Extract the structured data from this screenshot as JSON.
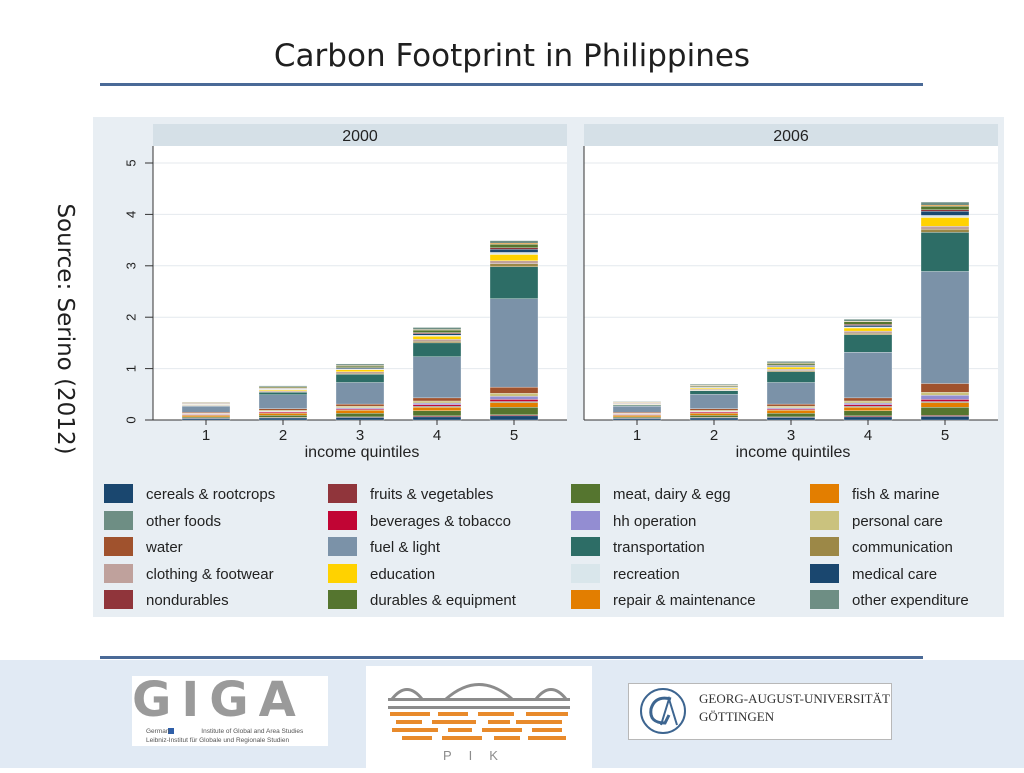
{
  "slide": {
    "title": "Carbon Footprint in Philippines",
    "source": "Source: Serino (2012)"
  },
  "logos": {
    "giga": {
      "name": "GIGA",
      "line1": "German",
      "line1b": "Institute of Global and Area Studies",
      "line2": "Leibniz-Institut für Globale und Regionale Studien"
    },
    "pik": {
      "name": "PIK"
    },
    "goettingen": {
      "line1": "GEORG-AUGUST-UNIVERSITÄT",
      "line2": "GÖTTINGEN"
    }
  },
  "colors": {
    "title_rule": "#4a6a97",
    "plot_bg": "#e8eef3",
    "panel_header_bg": "#d5e0e7",
    "footer_band": "#e1eaf4"
  },
  "chart_data": {
    "type": "bar",
    "stacked": true,
    "panels": [
      "2000",
      "2006"
    ],
    "categories": [
      "1",
      "2",
      "3",
      "4",
      "5"
    ],
    "xlabel": "income quintiles",
    "ylabel": "",
    "ylim": [
      0,
      5
    ],
    "yticks": [
      "0",
      "1",
      "2",
      "3",
      "4",
      "5"
    ],
    "grid": true,
    "legend_position": "bottom",
    "series": [
      {
        "name": "cereals & rootcrops",
        "color": "#1a476f",
        "values_2000": [
          0.03,
          0.04,
          0.05,
          0.06,
          0.08
        ],
        "values_2006": [
          0.03,
          0.04,
          0.05,
          0.06,
          0.07
        ]
      },
      {
        "name": "fruits & vegetables",
        "color": "#90353b",
        "values_2000": [
          0.01,
          0.01,
          0.01,
          0.02,
          0.02
        ],
        "values_2006": [
          0.01,
          0.01,
          0.01,
          0.02,
          0.02
        ]
      },
      {
        "name": "meat, dairy & egg",
        "color": "#55752f",
        "values_2000": [
          0.02,
          0.04,
          0.07,
          0.1,
          0.15
        ],
        "values_2006": [
          0.02,
          0.04,
          0.07,
          0.1,
          0.16
        ]
      },
      {
        "name": "fish & marine",
        "color": "#e37e00",
        "values_2000": [
          0.03,
          0.04,
          0.06,
          0.07,
          0.09
        ],
        "values_2006": [
          0.03,
          0.04,
          0.06,
          0.07,
          0.09
        ]
      },
      {
        "name": "other foods",
        "color": "#6e8e84",
        "values_2000": [
          0.01,
          0.01,
          0.01,
          0.02,
          0.02
        ],
        "values_2006": [
          0.01,
          0.01,
          0.01,
          0.02,
          0.02
        ]
      },
      {
        "name": "beverages & tobacco",
        "color": "#c10534",
        "values_2000": [
          0.01,
          0.02,
          0.02,
          0.03,
          0.04
        ],
        "values_2006": [
          0.01,
          0.02,
          0.02,
          0.03,
          0.04
        ]
      },
      {
        "name": "hh operation",
        "color": "#938dd2",
        "values_2000": [
          0.01,
          0.01,
          0.02,
          0.03,
          0.06
        ],
        "values_2006": [
          0.01,
          0.01,
          0.02,
          0.03,
          0.08
        ]
      },
      {
        "name": "personal care",
        "color": "#cac27e",
        "values_2000": [
          0.01,
          0.02,
          0.03,
          0.04,
          0.06
        ],
        "values_2006": [
          0.01,
          0.02,
          0.03,
          0.04,
          0.06
        ]
      },
      {
        "name": "water",
        "color": "#a0522d",
        "values_2000": [
          0.02,
          0.03,
          0.04,
          0.06,
          0.12
        ],
        "values_2006": [
          0.02,
          0.03,
          0.04,
          0.06,
          0.17
        ]
      },
      {
        "name": "fuel & light",
        "color": "#7b92a8",
        "values_2000": [
          0.12,
          0.27,
          0.42,
          0.8,
          1.72
        ],
        "values_2006": [
          0.12,
          0.28,
          0.42,
          0.89,
          2.18
        ]
      },
      {
        "name": "transportation",
        "color": "#2d6d66",
        "values_2000": [
          0.01,
          0.05,
          0.16,
          0.27,
          0.62
        ],
        "values_2006": [
          0.02,
          0.07,
          0.21,
          0.34,
          0.76
        ]
      },
      {
        "name": "communication",
        "color": "#9c8847",
        "values_2000": [
          0.005,
          0.01,
          0.02,
          0.03,
          0.06
        ],
        "values_2006": [
          0.005,
          0.01,
          0.02,
          0.03,
          0.06
        ]
      },
      {
        "name": "clothing & footwear",
        "color": "#bfa19c",
        "values_2000": [
          0.01,
          0.02,
          0.03,
          0.04,
          0.06
        ],
        "values_2006": [
          0.01,
          0.02,
          0.03,
          0.04,
          0.06
        ]
      },
      {
        "name": "education",
        "color": "#ffd200",
        "values_2000": [
          0.01,
          0.02,
          0.04,
          0.06,
          0.12
        ],
        "values_2006": [
          0.01,
          0.02,
          0.04,
          0.06,
          0.17
        ]
      },
      {
        "name": "recreation",
        "color": "#d9e6eb",
        "values_2000": [
          0.005,
          0.01,
          0.01,
          0.02,
          0.04
        ],
        "values_2006": [
          0.005,
          0.01,
          0.01,
          0.02,
          0.04
        ]
      },
      {
        "name": "medical care",
        "color": "#1a476f",
        "values_2000": [
          0.01,
          0.01,
          0.02,
          0.03,
          0.06
        ],
        "values_2006": [
          0.01,
          0.01,
          0.02,
          0.03,
          0.08
        ]
      },
      {
        "name": "nondurables",
        "color": "#90353b",
        "values_2000": [
          0.005,
          0.01,
          0.01,
          0.02,
          0.03
        ],
        "values_2006": [
          0.005,
          0.01,
          0.01,
          0.02,
          0.03
        ]
      },
      {
        "name": "durables & equipment",
        "color": "#55752f",
        "values_2000": [
          0.01,
          0.02,
          0.03,
          0.05,
          0.07
        ],
        "values_2006": [
          0.01,
          0.02,
          0.03,
          0.05,
          0.07
        ]
      },
      {
        "name": "repair & maintenance",
        "color": "#e37e00",
        "values_2000": [
          0.005,
          0.005,
          0.01,
          0.01,
          0.02
        ],
        "values_2006": [
          0.005,
          0.005,
          0.01,
          0.01,
          0.02
        ]
      },
      {
        "name": "other expenditure",
        "color": "#6e8e84",
        "values_2000": [
          0.01,
          0.02,
          0.03,
          0.04,
          0.05
        ],
        "values_2006": [
          0.01,
          0.02,
          0.03,
          0.04,
          0.06
        ]
      }
    ]
  }
}
